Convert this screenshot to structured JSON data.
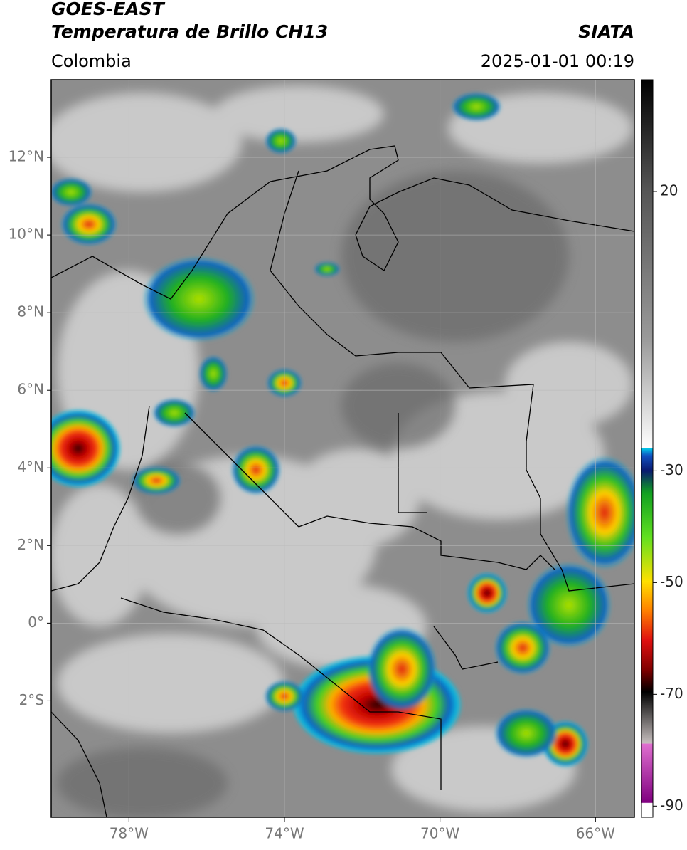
{
  "header": {
    "title": "GOES-EAST",
    "subtitle": "Temperatura de Brillo CH13",
    "region": "Colombia",
    "source": "SIATA",
    "timestamp": "2025-01-01 00:19"
  },
  "map": {
    "lonlim": [
      -80,
      -65
    ],
    "latlim": [
      -5,
      14
    ],
    "grid": true,
    "lonticks": [
      {
        "value": -78,
        "label": "78°W"
      },
      {
        "value": -74,
        "label": "74°W"
      },
      {
        "value": -70,
        "label": "70°W"
      },
      {
        "value": -66,
        "label": "66°W"
      }
    ],
    "latticks": [
      {
        "value": 12,
        "label": "12°N"
      },
      {
        "value": 10,
        "label": "10°N"
      },
      {
        "value": 8,
        "label": "8°N"
      },
      {
        "value": 6,
        "label": "6°N"
      },
      {
        "value": 4,
        "label": "4°N"
      },
      {
        "value": 2,
        "label": "2°N"
      },
      {
        "value": 0,
        "label": "0°"
      },
      {
        "value": -2,
        "label": "2°S"
      }
    ]
  },
  "colorbar": {
    "lim": [
      -92,
      40
    ],
    "ticks": [
      20,
      -30,
      -50,
      -70,
      -90
    ]
  }
}
